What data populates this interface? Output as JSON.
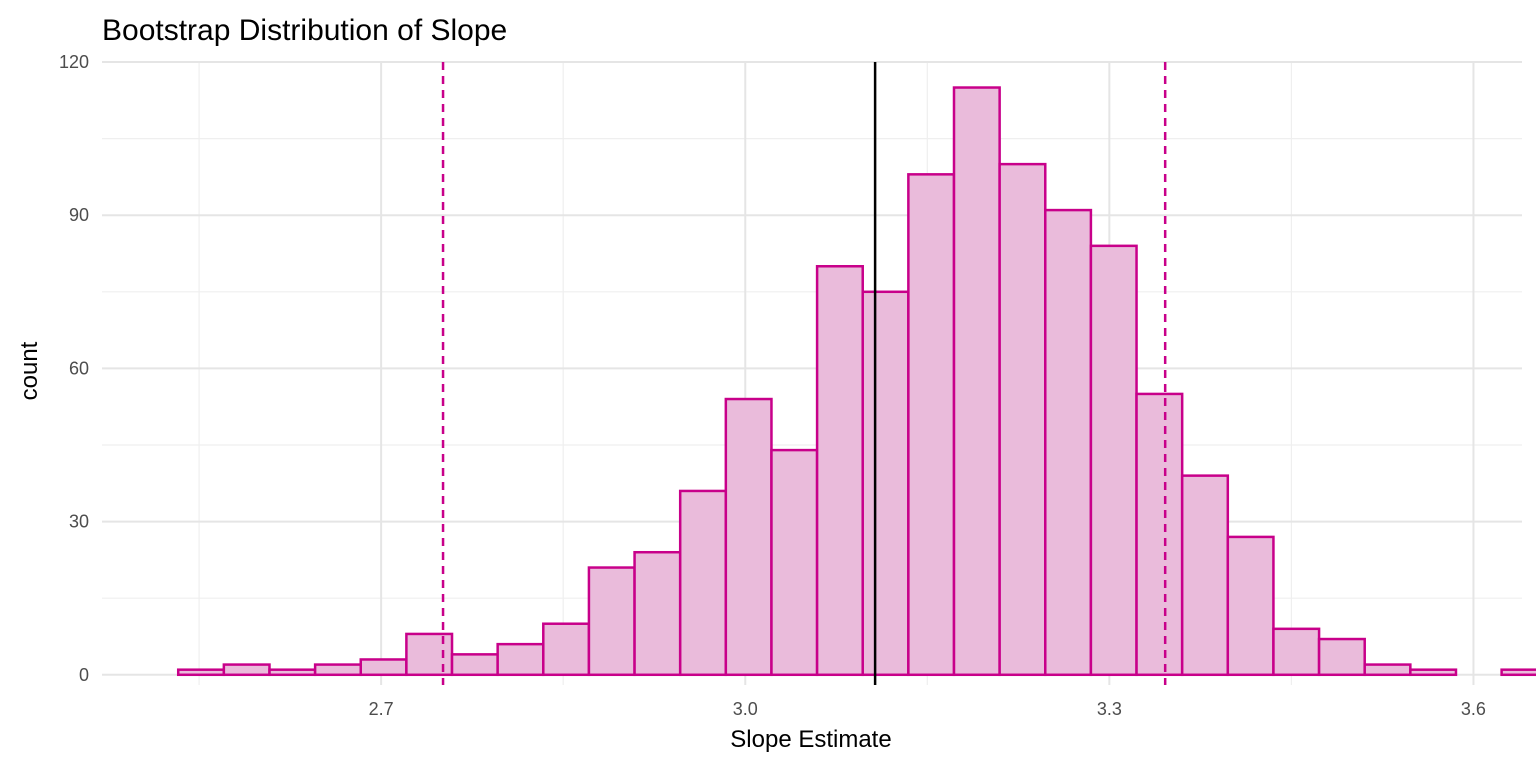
{
  "chart_data": {
    "type": "histogram",
    "title": "Bootstrap Distribution of Slope",
    "xlabel": "Slope Estimate",
    "ylabel": "count",
    "xlim": [
      2.47,
      3.64
    ],
    "ylim": [
      -2,
      120
    ],
    "x_ticks": [
      2.7,
      3.0,
      3.3,
      3.6
    ],
    "x_tick_labels": [
      "2.7",
      "3.0",
      "3.3",
      "3.6"
    ],
    "y_ticks": [
      0,
      30,
      60,
      90,
      120
    ],
    "y_tick_labels": [
      "0",
      "30",
      "60",
      "90",
      "120"
    ],
    "grid": true,
    "bin_start": 2.5328,
    "bin_width": 0.0376,
    "counts": [
      1,
      2,
      1,
      2,
      3,
      8,
      4,
      6,
      10,
      21,
      24,
      36,
      54,
      44,
      80,
      75,
      98,
      115,
      100,
      91,
      84,
      55,
      39,
      27,
      9,
      7,
      2,
      1,
      0,
      1
    ],
    "center_line": 3.107,
    "ci_lines": [
      2.751,
      3.346
    ],
    "colors": {
      "bar_fill": "#eabbdb",
      "bar_outline": "#c8008a",
      "ci_line": "#c8008a",
      "center_line": "#000000"
    }
  }
}
